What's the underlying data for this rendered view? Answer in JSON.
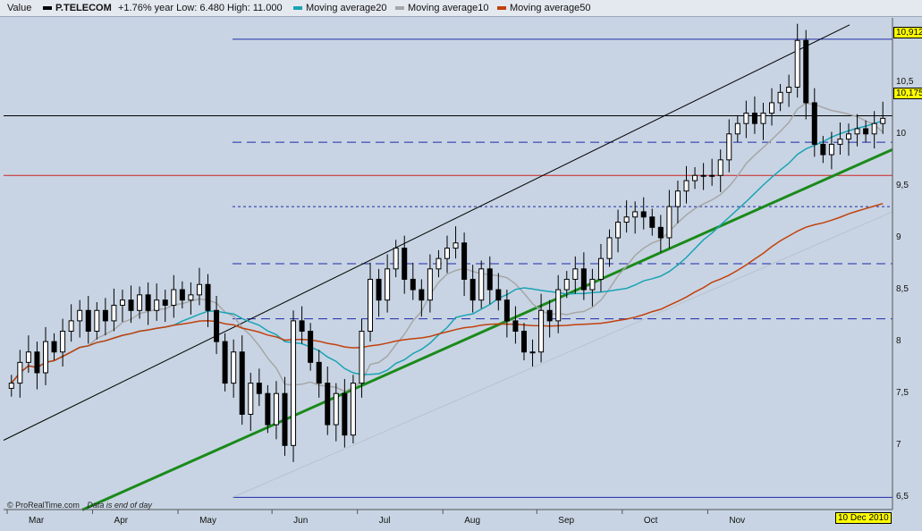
{
  "legend": {
    "value_label": "Value",
    "ticker": "P.TELECOM",
    "summary": "+1.76% year Low: 6.480 High: 11.000",
    "ma20_label": "Moving average20",
    "ma10_label": "Moving average10",
    "ma50_label": "Moving average50"
  },
  "colors": {
    "price": "#000000",
    "ma20": "#1aa3b5",
    "ma10": "#a6a6a6",
    "ma50": "#c2410c",
    "trend_green": "#1a8a1a",
    "hline_blue": "#1f2aa8",
    "hline_red": "#cc2222",
    "badge": "#ffff00"
  },
  "price_tags": [
    "10,912",
    "10,175"
  ],
  "date_tag": "10 Dec 2010",
  "footer": {
    "source": "© ProRealTime.com",
    "note": "Data is end of day"
  },
  "chart_data": {
    "type": "candlestick",
    "title": "",
    "xlabel": "",
    "ylabel": "",
    "x_ticks": [
      "Mar",
      "Apr",
      "May",
      "Jun",
      "Jul",
      "Aug",
      "Sep",
      "Oct",
      "Nov"
    ],
    "y_ticks": [
      "6,5",
      "7",
      "7,5",
      "8",
      "8,5",
      "9",
      "9,5",
      "10",
      "10,5"
    ],
    "ylim": [
      6.4,
      11.1
    ],
    "horizontal_levels": [
      {
        "value": 10.912,
        "style": "solid-blue"
      },
      {
        "value": 10.175,
        "style": "solid-black"
      },
      {
        "value": 9.92,
        "style": "dashed-blue"
      },
      {
        "value": 9.6,
        "style": "solid-red"
      },
      {
        "value": 9.3,
        "style": "dotted-blue"
      },
      {
        "value": 8.75,
        "style": "dashed-blue"
      },
      {
        "value": 8.22,
        "style": "dashed-blue"
      },
      {
        "value": 6.5,
        "style": "solid-blue"
      }
    ],
    "series_close": [
      7.6,
      7.8,
      7.9,
      7.7,
      8.0,
      7.9,
      8.1,
      8.2,
      8.3,
      8.1,
      8.3,
      8.2,
      8.35,
      8.4,
      8.3,
      8.45,
      8.3,
      8.4,
      8.35,
      8.5,
      8.4,
      8.45,
      8.55,
      8.3,
      8.0,
      7.6,
      7.9,
      7.3,
      7.6,
      7.5,
      7.2,
      7.5,
      7.0,
      8.2,
      8.1,
      7.8,
      7.6,
      7.2,
      7.5,
      7.1,
      7.6,
      8.1,
      8.6,
      8.4,
      8.7,
      8.9,
      8.6,
      8.5,
      8.4,
      8.7,
      8.8,
      8.9,
      8.95,
      8.6,
      8.4,
      8.7,
      8.5,
      8.4,
      8.2,
      8.1,
      7.9,
      7.9,
      8.3,
      8.2,
      8.5,
      8.6,
      8.7,
      8.5,
      8.6,
      8.8,
      9.0,
      9.15,
      9.2,
      9.25,
      9.2,
      9.1,
      9.0,
      9.3,
      9.45,
      9.55,
      9.6,
      9.6,
      9.6,
      9.75,
      10.0,
      10.1,
      10.2,
      10.1,
      10.2,
      10.3,
      10.4,
      10.45,
      10.9,
      10.3,
      9.9,
      9.8,
      9.9,
      9.95,
      10.0,
      10.05,
      10.0,
      10.1,
      10.15
    ],
    "series": [
      {
        "name": "Moving average20"
      },
      {
        "name": "Moving average10"
      },
      {
        "name": "Moving average50"
      }
    ],
    "grid": false,
    "legend_position": "top"
  }
}
